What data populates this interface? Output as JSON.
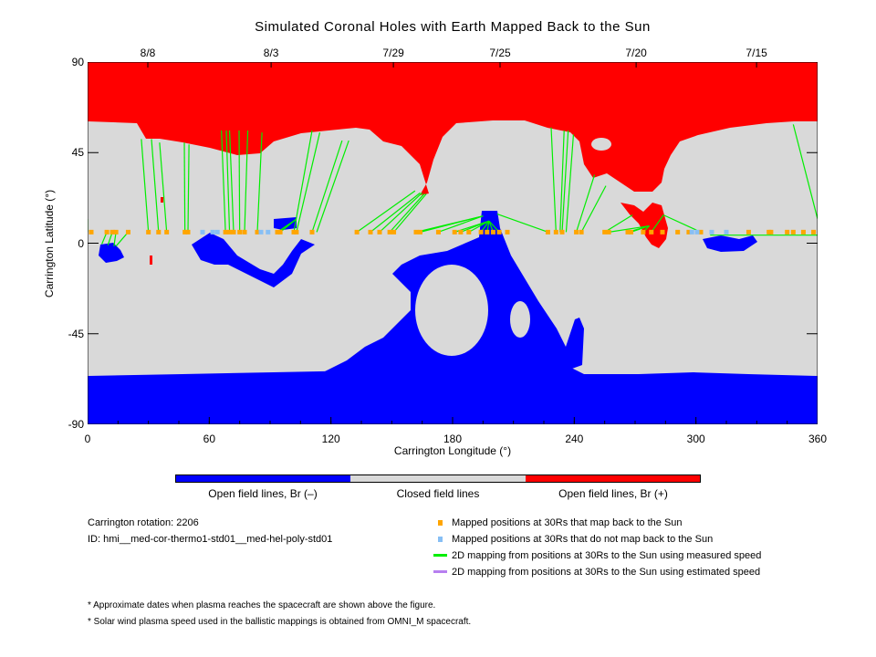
{
  "chart_data": {
    "type": "map",
    "title": "Simulated Coronal Holes with Earth Mapped Back to the Sun",
    "xlabel": "Carrington Longitude (°)",
    "ylabel": "Carrington Latitude (°)",
    "xlim": [
      0,
      360
    ],
    "ylim": [
      -90,
      90
    ],
    "xticks": [
      "0",
      "60",
      "120",
      "180",
      "240",
      "300",
      "360"
    ],
    "xtick_values": [
      0,
      60,
      120,
      180,
      240,
      300,
      360
    ],
    "yticks": [
      "90",
      "45",
      "0",
      "-45",
      "-90"
    ],
    "ytick_values": [
      90,
      45,
      0,
      -45,
      -90
    ],
    "top_dates": [
      {
        "label": "8/8",
        "lon": 29.7
      },
      {
        "label": "8/3",
        "lon": 90.5
      },
      {
        "label": "7/29",
        "lon": 150.8
      },
      {
        "label": "7/25",
        "lon": 203.4
      },
      {
        "label": "7/20",
        "lon": 270.5
      },
      {
        "label": "7/15",
        "lon": 329.9
      }
    ],
    "mapped_lat": 5.5,
    "mapped_lons": [
      1.8,
      9.5,
      12.2,
      14,
      20,
      30,
      35,
      39,
      48,
      49.5,
      68,
      70,
      72,
      75,
      77.4,
      83.7,
      93.6,
      95,
      101.7,
      103,
      110.7,
      132.8,
      139.5,
      144,
      149,
      151,
      162,
      164,
      173,
      181,
      184,
      188,
      194,
      197,
      200,
      203,
      207,
      227,
      231,
      234,
      241,
      243.5,
      255,
      257,
      266.4,
      268,
      274,
      278,
      283.5,
      291,
      296.5,
      302.4,
      326,
      336,
      337,
      345,
      348,
      353,
      358
    ],
    "unmapped_lons": [
      56.7,
      61.7,
      64,
      85.5,
      89,
      298,
      300.6,
      307.8,
      315
    ],
    "mappings_measured": [
      [
        0,
        12,
        0,
        5.5
      ],
      [
        7,
        -0.5,
        9.5,
        5.5
      ],
      [
        10,
        -1,
        12.2,
        5.5
      ],
      [
        13,
        -1.5,
        14,
        5.5
      ],
      [
        14,
        -1.5,
        20,
        5.5
      ],
      [
        26.5,
        51.7,
        30,
        5.5
      ],
      [
        31.5,
        51.7,
        35,
        5.5
      ],
      [
        35.5,
        50,
        39,
        5.5
      ],
      [
        47.7,
        50,
        48,
        5.5
      ],
      [
        50,
        49,
        49.5,
        5.5
      ],
      [
        66,
        56,
        68,
        5.5
      ],
      [
        68.4,
        56,
        70,
        5.5
      ],
      [
        70,
        56,
        72,
        5.5
      ],
      [
        74.7,
        56,
        75,
        5.5
      ],
      [
        79,
        56,
        77.4,
        5.5
      ],
      [
        86,
        55,
        83.7,
        5.5
      ],
      [
        103,
        12,
        93.6,
        5.5
      ],
      [
        103,
        12,
        95,
        5.5
      ],
      [
        110.7,
        56,
        101.7,
        5.5
      ],
      [
        114.5,
        55,
        103,
        5.5
      ],
      [
        125.5,
        51,
        110.7,
        5.5
      ],
      [
        128.8,
        51,
        113,
        5.5
      ],
      [
        161.5,
        26,
        132.8,
        5.5
      ],
      [
        164,
        25,
        139.5,
        5.5
      ],
      [
        165,
        25,
        144,
        5.5
      ],
      [
        166,
        24.5,
        149,
        5.5
      ],
      [
        167,
        24.5,
        151,
        5.5
      ],
      [
        195,
        13.5,
        162,
        5.5
      ],
      [
        195,
        13.5,
        164,
        5.5
      ],
      [
        195,
        13.5,
        173,
        5.5
      ],
      [
        198,
        11,
        181,
        5.5
      ],
      [
        198,
        11,
        184,
        5.5
      ],
      [
        198,
        11,
        188,
        5.5
      ],
      [
        198,
        11,
        194,
        5.5
      ],
      [
        198,
        11,
        197,
        5.5
      ],
      [
        198,
        11,
        200,
        5.5
      ],
      [
        198,
        11,
        203,
        5.5
      ],
      [
        202,
        14.5,
        227,
        5.5
      ],
      [
        228.6,
        57.5,
        231,
        5.5
      ],
      [
        235,
        56,
        233,
        5.5
      ],
      [
        237,
        56,
        234,
        5.5
      ],
      [
        239.6,
        54,
        236,
        5.5
      ],
      [
        250,
        34,
        241,
        5.5
      ],
      [
        255.6,
        28.5,
        243.5,
        5.5
      ],
      [
        268.7,
        14,
        255,
        5.5
      ],
      [
        277,
        8.6,
        257,
        5.5
      ],
      [
        277,
        8.6,
        266.4,
        5.5
      ],
      [
        277,
        8.6,
        268,
        5.5
      ],
      [
        277,
        8.6,
        274,
        5.5
      ],
      [
        284,
        14,
        278,
        5.5
      ],
      [
        284,
        14,
        302.4,
        5.5
      ],
      [
        307,
        4,
        360,
        4
      ],
      [
        348,
        59,
        360,
        12
      ]
    ],
    "mappings_estimated": []
  },
  "colorbar": {
    "labels": [
      "Open field lines, Br (–)",
      "Closed field lines",
      "Open field lines, Br (+)"
    ],
    "colors": [
      "#0000ff",
      "#d9d9d9",
      "#ff0000"
    ]
  },
  "info": {
    "rotation": "Carrington rotation: 2206",
    "id": "ID: hmi__med-cor-thermo1-std01__med-hel-poly-std01"
  },
  "legend": [
    {
      "label": "Mapped positions at 30Rs that map back to the Sun",
      "color": "#ffa500",
      "kind": "square"
    },
    {
      "label": "Mapped positions at 30Rs that do not map back to the Sun",
      "color": "#87bff5",
      "kind": "square"
    },
    {
      "label": "2D mapping from positions at 30Rs to the Sun using measured speed",
      "color": "#00ee00",
      "kind": "line"
    },
    {
      "label": "2D mapping from positions at 30Rs to the Sun using estimated speed",
      "color": "#b77ff0",
      "kind": "line"
    }
  ],
  "footnotes": [
    "* Approximate dates when plasma reaches the spacecraft are shown above the figure.",
    "* Solar wind plasma speed used in the ballistic mappings is obtained from OMNI_M spacecraft."
  ]
}
